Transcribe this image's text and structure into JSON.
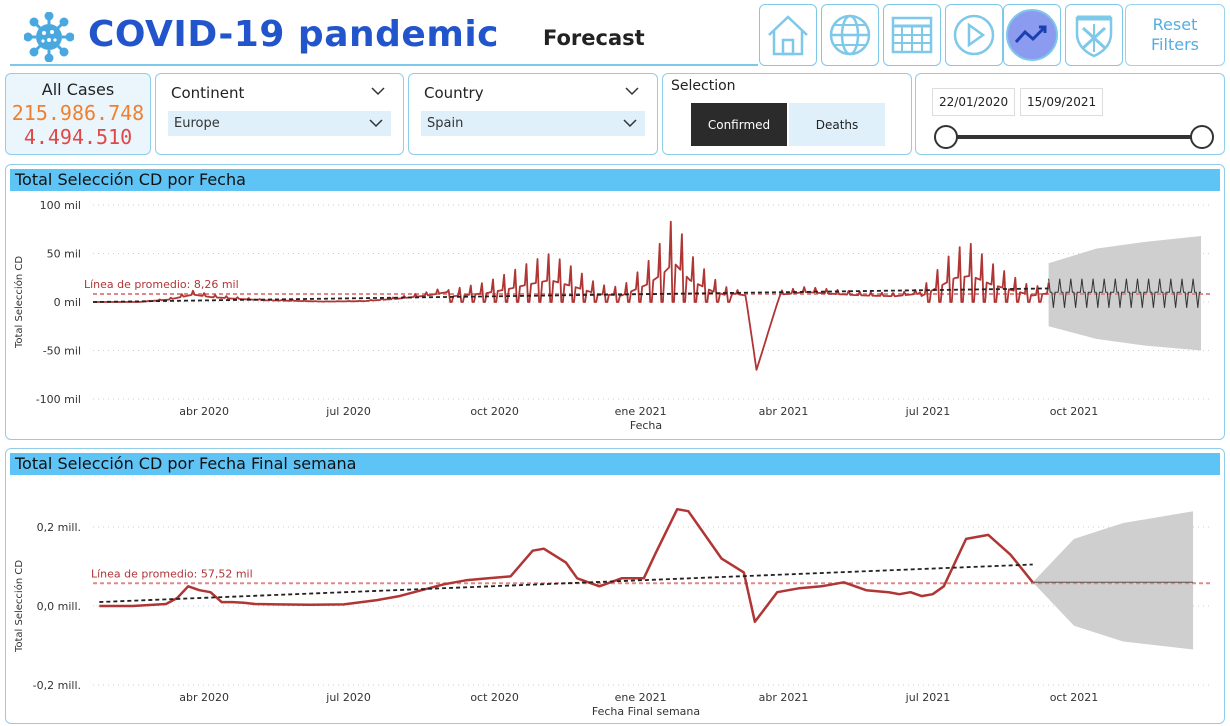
{
  "header": {
    "title": "COVID-19 pandemic",
    "page": "Forecast",
    "logo_icon": "virus-icon",
    "nav": [
      {
        "name": "home-icon"
      },
      {
        "name": "globe-icon"
      },
      {
        "name": "table-icon"
      },
      {
        "name": "play-icon"
      },
      {
        "name": "trend-icon",
        "active": true
      },
      {
        "name": "university-shield-icon"
      }
    ],
    "reset_label_1": "Reset",
    "reset_label_2": "Filters"
  },
  "cases": {
    "label": "All Cases",
    "confirmed": "215.986.748",
    "deaths": "4.494.510",
    "confirmed_color": "#f08030",
    "deaths_color": "#e04848"
  },
  "continent": {
    "label": "Continent",
    "value": "Europe"
  },
  "country": {
    "label": "Country",
    "value": "Spain"
  },
  "selection": {
    "label": "Selection",
    "options": [
      "Confirmed",
      "Deaths"
    ],
    "selected": "Confirmed"
  },
  "date_range": {
    "start": "22/01/2020",
    "end": "15/09/2021"
  },
  "accent": "#5ec3f5",
  "chart_data": [
    {
      "type": "line",
      "title": "Total Selección CD por Fecha",
      "xlabel": "Fecha",
      "ylabel": "Total Selección CD",
      "x_ticks": [
        "abr 2020",
        "jul 2020",
        "oct 2020",
        "ene 2021",
        "abr 2021",
        "jul 2021",
        "oct 2021"
      ],
      "y_ticks": [
        "100 mil",
        "50 mil",
        "0 mil",
        "-50 mil",
        "-100 mil"
      ],
      "ylim": [
        -100000,
        100000
      ],
      "average_label": "Línea de promedio: 8,26 mil",
      "average": 8260,
      "series_color": "#b03535",
      "forecast_band_color": "#cfcfcf",
      "grid": "horizontal dotted",
      "x": [
        "2020-01-22",
        "2020-02-20",
        "2020-03-10",
        "2020-03-25",
        "2020-04-05",
        "2020-04-20",
        "2020-05-10",
        "2020-05-25",
        "2020-06-15",
        "2020-07-10",
        "2020-08-01",
        "2020-08-20",
        "2020-09-10",
        "2020-09-25",
        "2020-10-10",
        "2020-10-22",
        "2020-11-05",
        "2020-11-20",
        "2020-12-05",
        "2020-12-20",
        "2021-01-05",
        "2021-01-15",
        "2021-01-22",
        "2021-02-01",
        "2021-02-15",
        "2021-03-01",
        "2021-03-08",
        "2021-03-15",
        "2021-03-30",
        "2021-04-15",
        "2021-05-01",
        "2021-05-20",
        "2021-06-10",
        "2021-06-25",
        "2021-07-08",
        "2021-07-18",
        "2021-07-28",
        "2021-08-10",
        "2021-08-25",
        "2021-09-05",
        "2021-09-15"
      ],
      "y": [
        0,
        0,
        3000,
        9000,
        6000,
        4000,
        2000,
        1500,
        500,
        1000,
        4000,
        8000,
        15000,
        20000,
        30000,
        40000,
        50000,
        35000,
        18000,
        15000,
        40000,
        65000,
        90000,
        50000,
        25000,
        10000,
        8000,
        -70000,
        9000,
        12000,
        10000,
        8000,
        7000,
        10000,
        35000,
        55000,
        60000,
        40000,
        25000,
        15000,
        20000
      ],
      "forecast": {
        "x": [
          "2021-09-15",
          "2021-10-15",
          "2021-11-15",
          "2021-12-20"
        ],
        "mean": [
          20000,
          18000,
          17000,
          16000
        ],
        "upper": [
          40000,
          55000,
          62000,
          68000
        ],
        "lower": [
          -25000,
          -38000,
          -45000,
          -50000
        ]
      }
    },
    {
      "type": "line",
      "title": "Total Selección CD por Fecha Final semana",
      "xlabel": "Fecha Final semana",
      "ylabel": "Total Selección CD",
      "x_ticks": [
        "abr 2020",
        "jul 2020",
        "oct 2020",
        "ene 2021",
        "abr 2021",
        "jul 2021",
        "oct 2021"
      ],
      "y_ticks": [
        "0,2 mill.",
        "0,0 mill.",
        "-0,2 mill."
      ],
      "ylim": [
        -0.2,
        0.2
      ],
      "average_label": "Línea de promedio: 57,52 mil",
      "average": 0.0575,
      "series_color": "#b03535",
      "forecast_band_color": "#cfcfcf",
      "grid": "horizontal dotted",
      "x": [
        "2020-01-26",
        "2020-02-16",
        "2020-03-08",
        "2020-03-15",
        "2020-03-22",
        "2020-03-29",
        "2020-04-05",
        "2020-04-12",
        "2020-04-19",
        "2020-04-26",
        "2020-05-03",
        "2020-05-17",
        "2020-06-07",
        "2020-06-28",
        "2020-07-19",
        "2020-08-02",
        "2020-08-16",
        "2020-08-30",
        "2020-09-13",
        "2020-09-27",
        "2020-10-11",
        "2020-10-25",
        "2020-11-01",
        "2020-11-15",
        "2020-11-22",
        "2020-12-06",
        "2020-12-20",
        "2021-01-03",
        "2021-01-10",
        "2021-01-24",
        "2021-01-31",
        "2021-02-07",
        "2021-02-21",
        "2021-03-07",
        "2021-03-14",
        "2021-03-28",
        "2021-04-11",
        "2021-04-25",
        "2021-05-09",
        "2021-05-23",
        "2021-06-06",
        "2021-06-13",
        "2021-06-20",
        "2021-06-27",
        "2021-07-04",
        "2021-07-11",
        "2021-07-25",
        "2021-08-08",
        "2021-08-22",
        "2021-09-05"
      ],
      "y": [
        0,
        0,
        0.005,
        0.02,
        0.05,
        0.04,
        0.035,
        0.01,
        0.01,
        0.008,
        0.005,
        0.004,
        0.003,
        0.004,
        0.015,
        0.025,
        0.04,
        0.055,
        0.065,
        0.07,
        0.075,
        0.14,
        0.145,
        0.11,
        0.07,
        0.05,
        0.07,
        0.07,
        0.13,
        0.245,
        0.24,
        0.2,
        0.12,
        0.085,
        -0.04,
        0.035,
        0.045,
        0.05,
        0.06,
        0.04,
        0.035,
        0.03,
        0.035,
        0.025,
        0.03,
        0.05,
        0.17,
        0.18,
        0.13,
        0.06
      ],
      "forecast": {
        "x": [
          "2021-09-05",
          "2021-10-01",
          "2021-11-01",
          "2021-12-15"
        ],
        "mean": [
          0.06,
          0.06,
          0.06,
          0.06
        ],
        "upper": [
          0.06,
          0.17,
          0.21,
          0.24
        ],
        "lower": [
          0.06,
          -0.05,
          -0.09,
          -0.11
        ]
      }
    }
  ]
}
